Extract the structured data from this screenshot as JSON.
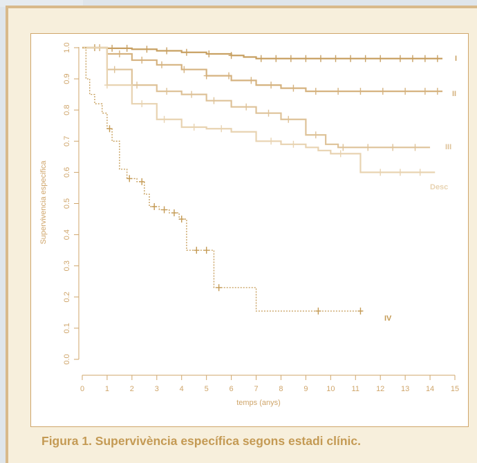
{
  "caption": "Figura 1. Supervivència específica segons estadi clínic.",
  "colors": {
    "frame_bg": "#f7efdc",
    "frame_border": "#d8b98a",
    "caption": "#c49a54",
    "axis": "#cfa56a"
  },
  "chart_data": {
    "type": "line",
    "xlabel": "temps (anys)",
    "ylabel": "Supervivencia especifica",
    "xlim": [
      0,
      15
    ],
    "ylim": [
      0,
      1
    ],
    "x_ticks": [
      0,
      1,
      2,
      3,
      4,
      5,
      6,
      7,
      8,
      9,
      10,
      11,
      12,
      13,
      14,
      15
    ],
    "x_tick_labels": [
      "0",
      "1",
      "2",
      "3",
      "4",
      "5",
      "6",
      "7",
      "8",
      "9",
      "10",
      "11",
      "12",
      "13",
      "14",
      "15"
    ],
    "y_ticks": [
      0,
      0.1,
      0.2,
      0.3,
      0.4,
      0.5,
      0.6,
      0.7,
      0.8,
      0.9,
      1
    ],
    "y_tick_labels": [
      "0.0",
      "0.1",
      "0.2",
      "0.3",
      "0.4",
      "0.5",
      "0.6",
      "0.7",
      "0.8",
      "0.9",
      "1.0"
    ],
    "grid": false,
    "legend": "none",
    "series": [
      {
        "name": "I",
        "color": "#c8a062",
        "style": "solid",
        "x": [
          0,
          1,
          2,
          3,
          4,
          5,
          6,
          6.5,
          7,
          14.5
        ],
        "y": [
          1.0,
          0.998,
          0.995,
          0.99,
          0.985,
          0.98,
          0.975,
          0.97,
          0.965,
          0.965
        ],
        "censored_x": [
          0.5,
          1.2,
          1.8,
          2.6,
          3.4,
          4.2,
          5.1,
          6.0,
          7.2,
          7.8,
          8.4,
          9.0,
          9.6,
          10.2,
          10.8,
          11.4,
          12.0,
          12.8,
          13.3,
          13.8,
          14.3
        ]
      },
      {
        "name": "II",
        "color": "#d5b27f",
        "style": "solid",
        "x": [
          0,
          1,
          2,
          3,
          4,
          5,
          6,
          7,
          8,
          9,
          14.5
        ],
        "y": [
          1.0,
          0.98,
          0.96,
          0.945,
          0.93,
          0.91,
          0.895,
          0.88,
          0.87,
          0.86,
          0.86
        ],
        "censored_x": [
          0.7,
          1.5,
          2.4,
          3.2,
          4.1,
          5.0,
          5.9,
          6.8,
          7.6,
          8.5,
          9.4,
          10.3,
          11.2,
          12.1,
          13.0,
          13.8,
          14.3
        ]
      },
      {
        "name": "III",
        "color": "#dec298",
        "style": "solid",
        "x": [
          0,
          1,
          2,
          3,
          4,
          5,
          6,
          7,
          8,
          9,
          9.8,
          10.3,
          14
        ],
        "y": [
          1.0,
          0.93,
          0.88,
          0.86,
          0.85,
          0.83,
          0.81,
          0.79,
          0.77,
          0.72,
          0.69,
          0.68,
          0.68
        ],
        "censored_x": [
          1.3,
          2.2,
          3.4,
          4.4,
          5.3,
          6.6,
          7.5,
          8.3,
          9.4,
          10.5,
          11.5,
          12.5,
          13.4
        ]
      },
      {
        "name": "Desc",
        "color": "#e8d3b1",
        "style": "solid",
        "x": [
          0,
          1,
          2,
          3,
          4,
          5,
          6,
          7,
          8,
          9,
          9.5,
          10,
          11.2,
          14.2
        ],
        "y": [
          1.0,
          0.88,
          0.82,
          0.77,
          0.745,
          0.74,
          0.73,
          0.7,
          0.69,
          0.68,
          0.67,
          0.66,
          0.6,
          0.6
        ],
        "censored_x": [
          1.0,
          2.4,
          3.3,
          4.5,
          5.6,
          7.6,
          8.5,
          10.4,
          12.0,
          12.8,
          13.6
        ]
      },
      {
        "name": "IV",
        "color": "#c49a54",
        "style": "dashed",
        "x": [
          0,
          0.15,
          0.3,
          0.5,
          0.8,
          1.0,
          1.2,
          1.5,
          1.8,
          2.2,
          2.5,
          2.7,
          3.1,
          3.5,
          3.9,
          4.2,
          5.2,
          5.3,
          6.9,
          7.0,
          11.3
        ],
        "y": [
          1.0,
          0.9,
          0.85,
          0.82,
          0.79,
          0.74,
          0.7,
          0.61,
          0.58,
          0.57,
          0.53,
          0.49,
          0.48,
          0.47,
          0.45,
          0.35,
          0.35,
          0.23,
          0.23,
          0.155,
          0.155
        ],
        "censored_x": [
          1.1,
          1.9,
          2.4,
          2.9,
          3.3,
          3.7,
          4.0,
          4.6,
          5.0,
          5.5,
          9.5,
          11.2
        ]
      }
    ]
  }
}
